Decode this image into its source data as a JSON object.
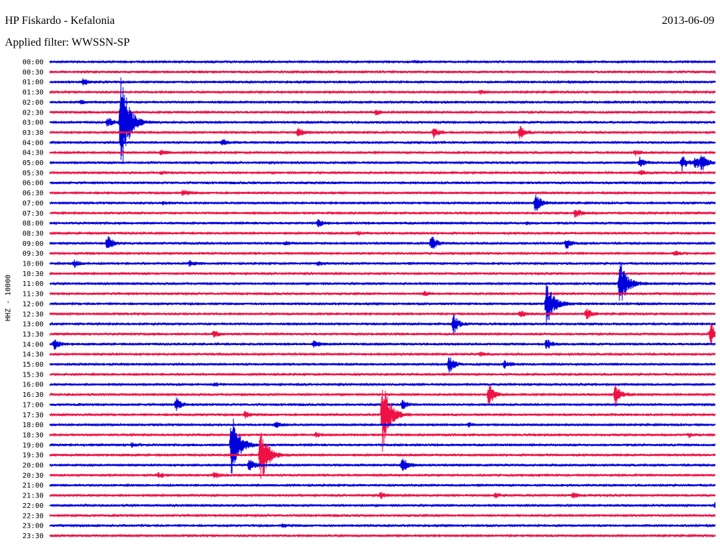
{
  "header": {
    "station": "HP Fiskardo - Kefalonia",
    "filter": "Applied filter: WWSSN-SP",
    "date": "2013-06-09"
  },
  "channel_label": "HHZ - 10000",
  "colors": {
    "trace_a": "#0000dd",
    "trace_b": "#ee1144"
  },
  "chart_data": {
    "type": "line",
    "title": "HP Fiskardo - Kefalonia",
    "subtitle": "Applied filter: WWSSN-SP",
    "date": "2013-06-09",
    "ylabel": "HHZ - 10000",
    "y_tick_labels": [
      "00:00",
      "00:30",
      "01:00",
      "01:30",
      "02:00",
      "02:30",
      "03:00",
      "03:30",
      "04:00",
      "04:30",
      "05:00",
      "05:30",
      "06:00",
      "06:30",
      "07:00",
      "07:30",
      "08:00",
      "08:30",
      "09:00",
      "09:30",
      "10:00",
      "10:30",
      "11:00",
      "11:30",
      "12:00",
      "12:30",
      "13:00",
      "13:30",
      "14:00",
      "14:30",
      "15:00",
      "15:30",
      "16:00",
      "16:30",
      "17:00",
      "17:30",
      "18:00",
      "18:30",
      "19:00",
      "19:30",
      "20:00",
      "20:30",
      "21:00",
      "21:30",
      "22:00",
      "22:30",
      "23:00",
      "23:30"
    ],
    "trace_minutes": 30,
    "series_colors_alternating": [
      "#0000dd",
      "#ee1144"
    ],
    "events": [
      {
        "row": 0,
        "minute": 16.4,
        "amp": 1.5
      },
      {
        "row": 1,
        "minute": 30,
        "amp": 2
      },
      {
        "row": 2,
        "minute": 1.5,
        "amp": 4
      },
      {
        "row": 3,
        "minute": 19.4,
        "amp": 2
      },
      {
        "row": 4,
        "minute": 1.4,
        "amp": 3
      },
      {
        "row": 5,
        "minute": 14.7,
        "amp": 3
      },
      {
        "row": 6,
        "minute": 3.2,
        "amp": 88
      },
      {
        "row": 6,
        "minute": 2.6,
        "amp": 8
      },
      {
        "row": 7,
        "minute": 11.2,
        "amp": 7
      },
      {
        "row": 7,
        "minute": 17.3,
        "amp": 8
      },
      {
        "row": 7,
        "minute": 21.2,
        "amp": 10
      },
      {
        "row": 8,
        "minute": 7.8,
        "amp": 4
      },
      {
        "row": 9,
        "minute": 5.0,
        "amp": 3
      },
      {
        "row": 9,
        "minute": 26.4,
        "amp": 4
      },
      {
        "row": 10,
        "minute": 26.6,
        "amp": 8
      },
      {
        "row": 10,
        "minute": 29.4,
        "amp": 12
      },
      {
        "row": 10,
        "minute": 28.5,
        "amp": 12
      },
      {
        "row": 10,
        "minute": 29.1,
        "amp": 10
      },
      {
        "row": 11,
        "minute": 5.0,
        "amp": 2
      },
      {
        "row": 11,
        "minute": 26.6,
        "amp": 4
      },
      {
        "row": 13,
        "minute": 6.0,
        "amp": 5
      },
      {
        "row": 14,
        "minute": 5.1,
        "amp": 2
      },
      {
        "row": 14,
        "minute": 21.9,
        "amp": 16
      },
      {
        "row": 15,
        "minute": 23.7,
        "amp": 7
      },
      {
        "row": 16,
        "minute": 12.1,
        "amp": 5
      },
      {
        "row": 16,
        "minute": 21.5,
        "amp": 2
      },
      {
        "row": 17,
        "minute": 13.9,
        "amp": 2
      },
      {
        "row": 18,
        "minute": 2.6,
        "amp": 12
      },
      {
        "row": 18,
        "minute": 17.2,
        "amp": 12
      },
      {
        "row": 18,
        "minute": 23.3,
        "amp": 8
      },
      {
        "row": 18,
        "minute": 10.6,
        "amp": 2
      },
      {
        "row": 19,
        "minute": 28.2,
        "amp": 3
      },
      {
        "row": 20,
        "minute": 1.1,
        "amp": 5
      },
      {
        "row": 20,
        "minute": 6.3,
        "amp": 4
      },
      {
        "row": 20,
        "minute": 12.1,
        "amp": 3
      },
      {
        "row": 22,
        "minute": 25.7,
        "amp": 38
      },
      {
        "row": 23,
        "minute": 16.9,
        "amp": 3
      },
      {
        "row": 24,
        "minute": 22.4,
        "amp": 34
      },
      {
        "row": 25,
        "minute": 21.2,
        "amp": 5
      },
      {
        "row": 25,
        "minute": 24.2,
        "amp": 8
      },
      {
        "row": 26,
        "minute": 18.2,
        "amp": 16
      },
      {
        "row": 27,
        "minute": 7.4,
        "amp": 5
      },
      {
        "row": 27,
        "minute": 29.8,
        "amp": 18
      },
      {
        "row": 28,
        "minute": 0.2,
        "amp": 8
      },
      {
        "row": 28,
        "minute": 11.9,
        "amp": 5
      },
      {
        "row": 28,
        "minute": 22.4,
        "amp": 8
      },
      {
        "row": 29,
        "minute": 19.4,
        "amp": 3
      },
      {
        "row": 30,
        "minute": 18.0,
        "amp": 14
      },
      {
        "row": 30,
        "minute": 20.5,
        "amp": 5
      },
      {
        "row": 32,
        "minute": 7.4,
        "amp": 2
      },
      {
        "row": 33,
        "minute": 19.8,
        "amp": 18
      },
      {
        "row": 33,
        "minute": 25.5,
        "amp": 18
      },
      {
        "row": 34,
        "minute": 5.7,
        "amp": 10
      },
      {
        "row": 34,
        "minute": 15.9,
        "amp": 6
      },
      {
        "row": 35,
        "minute": 15.0,
        "amp": 55
      },
      {
        "row": 35,
        "minute": 8.8,
        "amp": 6
      },
      {
        "row": 36,
        "minute": 10.2,
        "amp": 4
      },
      {
        "row": 36,
        "minute": 18.9,
        "amp": 3
      },
      {
        "row": 37,
        "minute": 12.0,
        "amp": 3
      },
      {
        "row": 37,
        "minute": 28.8,
        "amp": 3
      },
      {
        "row": 38,
        "minute": 8.2,
        "amp": 50
      },
      {
        "row": 38,
        "minute": 3.7,
        "amp": 3
      },
      {
        "row": 39,
        "minute": 9.5,
        "amp": 44
      },
      {
        "row": 40,
        "minute": 9.0,
        "amp": 10
      },
      {
        "row": 40,
        "minute": 15.9,
        "amp": 12
      },
      {
        "row": 41,
        "minute": 4.9,
        "amp": 4
      },
      {
        "row": 41,
        "minute": 7.4,
        "amp": 4
      },
      {
        "row": 43,
        "minute": 14.9,
        "amp": 5
      },
      {
        "row": 43,
        "minute": 20.1,
        "amp": 3
      },
      {
        "row": 43,
        "minute": 23.6,
        "amp": 4
      },
      {
        "row": 44,
        "minute": 30,
        "amp": 3
      },
      {
        "row": 46,
        "minute": 10.5,
        "amp": 3
      }
    ]
  }
}
